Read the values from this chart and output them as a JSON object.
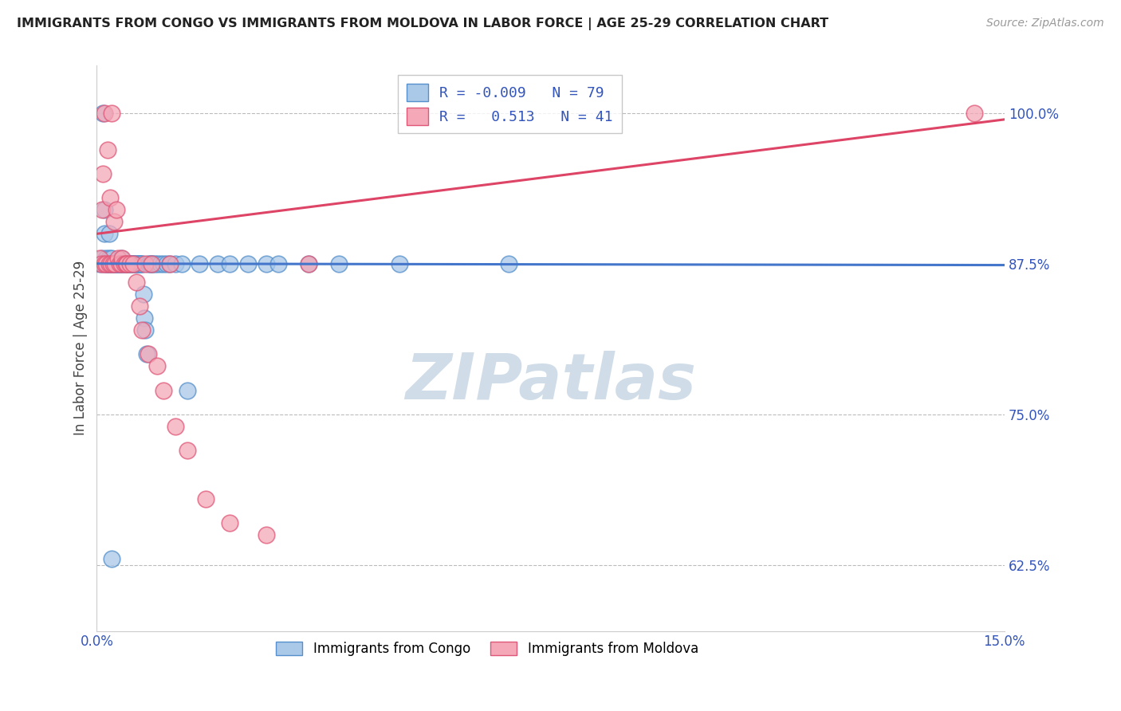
{
  "title": "IMMIGRANTS FROM CONGO VS IMMIGRANTS FROM MOLDOVA IN LABOR FORCE | AGE 25-29 CORRELATION CHART",
  "source_text": "Source: ZipAtlas.com",
  "ylabel": "In Labor Force | Age 25-29",
  "xlim": [
    0.0,
    15.0
  ],
  "ylim": [
    57.0,
    104.0
  ],
  "ytick_values": [
    62.5,
    75.0,
    87.5,
    100.0
  ],
  "xtick_values": [
    0.0,
    15.0
  ],
  "legend_r_congo": "-0.009",
  "legend_n_congo": "79",
  "legend_r_moldova": "0.513",
  "legend_n_moldova": "41",
  "congo_color": "#aac8e8",
  "moldova_color": "#f4a8b8",
  "congo_edge_color": "#5590cc",
  "moldova_edge_color": "#e05878",
  "congo_line_color": "#4477cc",
  "moldova_line_color": "#dd4466",
  "grid_color": "#bbbbbb",
  "background_color": "#ffffff",
  "watermark_color": "#d0dde8",
  "congo_scatter_x": [
    0.05,
    0.08,
    0.1,
    0.1,
    0.12,
    0.13,
    0.15,
    0.15,
    0.17,
    0.18,
    0.2,
    0.2,
    0.22,
    0.22,
    0.23,
    0.25,
    0.25,
    0.27,
    0.28,
    0.3,
    0.3,
    0.32,
    0.33,
    0.35,
    0.35,
    0.37,
    0.38,
    0.4,
    0.4,
    0.42,
    0.43,
    0.45,
    0.47,
    0.48,
    0.5,
    0.5,
    0.52,
    0.53,
    0.55,
    0.57,
    0.58,
    0.6,
    0.62,
    0.63,
    0.65,
    0.67,
    0.68,
    0.7,
    0.72,
    0.73,
    0.75,
    0.77,
    0.78,
    0.8,
    0.82,
    0.85,
    0.88,
    0.9,
    0.92,
    0.95,
    1.0,
    1.05,
    1.1,
    1.15,
    1.2,
    1.3,
    1.4,
    1.5,
    1.7,
    2.0,
    2.2,
    2.5,
    2.8,
    3.0,
    3.5,
    4.0,
    5.0,
    6.8,
    0.25
  ],
  "congo_scatter_y": [
    87.5,
    88.0,
    87.5,
    100.0,
    90.0,
    92.0,
    87.5,
    88.0,
    87.5,
    87.5,
    88.0,
    90.0,
    87.5,
    87.5,
    87.5,
    87.5,
    88.0,
    87.5,
    87.5,
    87.5,
    87.5,
    87.5,
    87.5,
    87.5,
    87.5,
    87.5,
    87.5,
    87.5,
    88.0,
    87.5,
    87.5,
    87.5,
    87.5,
    87.5,
    87.5,
    87.5,
    87.5,
    87.5,
    87.5,
    87.5,
    87.5,
    87.5,
    87.5,
    87.5,
    87.5,
    87.5,
    87.5,
    87.5,
    87.5,
    87.5,
    87.5,
    85.0,
    83.0,
    82.0,
    80.0,
    87.5,
    87.5,
    87.5,
    87.5,
    87.5,
    87.5,
    87.5,
    87.5,
    87.5,
    87.5,
    87.5,
    87.5,
    77.0,
    87.5,
    87.5,
    87.5,
    87.5,
    87.5,
    87.5,
    87.5,
    87.5,
    87.5,
    87.5,
    63.0
  ],
  "moldova_scatter_x": [
    0.05,
    0.07,
    0.08,
    0.1,
    0.12,
    0.13,
    0.15,
    0.18,
    0.2,
    0.22,
    0.23,
    0.25,
    0.27,
    0.28,
    0.3,
    0.32,
    0.35,
    0.38,
    0.4,
    0.42,
    0.45,
    0.48,
    0.5,
    0.55,
    0.6,
    0.65,
    0.7,
    0.75,
    0.8,
    0.85,
    0.9,
    1.0,
    1.1,
    1.2,
    1.3,
    1.5,
    1.8,
    2.2,
    2.8,
    3.5,
    14.5
  ],
  "moldova_scatter_y": [
    88.0,
    87.5,
    92.0,
    95.0,
    87.5,
    100.0,
    87.5,
    97.0,
    87.5,
    93.0,
    87.5,
    100.0,
    87.5,
    91.0,
    87.5,
    92.0,
    88.0,
    87.5,
    87.5,
    88.0,
    87.5,
    87.5,
    87.5,
    87.5,
    87.5,
    86.0,
    84.0,
    82.0,
    87.5,
    80.0,
    87.5,
    79.0,
    77.0,
    87.5,
    74.0,
    72.0,
    68.0,
    66.0,
    65.0,
    87.5,
    100.0
  ],
  "congo_line_y_at_0": 87.52,
  "congo_line_y_at_15": 87.4,
  "moldova_line_y_at_0": 90.0,
  "moldova_line_y_at_15": 99.5
}
